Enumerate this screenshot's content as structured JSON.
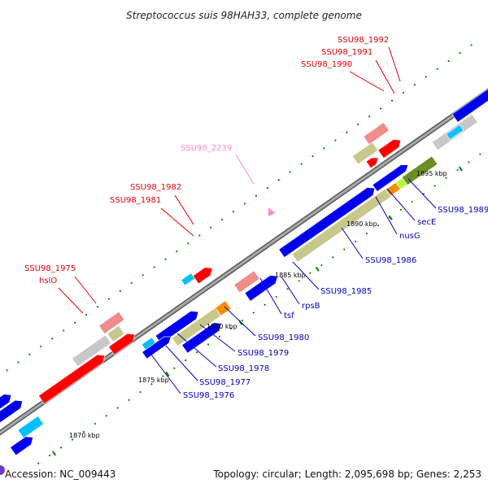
{
  "title": "Streptococcus suis 98HAH33, complete genome",
  "footer": {
    "accession": "Accession: NC_009443",
    "summary": "Topology: circular; Length: 2,095,698 bp; Genes: 2,253"
  },
  "colors": {
    "backbone": "#8c8c8c",
    "forward_gene": "#0000ee",
    "reverse_gene": "#ff0000",
    "trna": "#00c0ff",
    "pseudo": "#c8c8c8",
    "cds_khaki": "#c8c88c",
    "cds_salmon": "#f08c8c",
    "cds_olive": "#6b8e23",
    "cds_orange": "#ff8c00",
    "cds_lime": "#adff2f",
    "label_red": "#dd0000",
    "label_blue": "#0000bb",
    "label_pink": "#ff88cc",
    "tick": "#008000"
  },
  "ticks": [
    {
      "label": "1870 kbp"
    },
    {
      "label": "1875 kbp"
    },
    {
      "label": "1880 kbp"
    },
    {
      "label": "1885 kbp"
    },
    {
      "label": "1890 kbp"
    },
    {
      "label": "1895 kbp"
    }
  ],
  "labels": [
    {
      "text": "SSU98_1992",
      "color": "red"
    },
    {
      "text": "SSU98_1991",
      "color": "red"
    },
    {
      "text": "SSU98_1990",
      "color": "red"
    },
    {
      "text": "SSU98_2239",
      "color": "pink"
    },
    {
      "text": "SSU98_1982",
      "color": "red"
    },
    {
      "text": "SSU98_1981",
      "color": "red"
    },
    {
      "text": "SSU98_1975",
      "color": "red"
    },
    {
      "text": "hslO",
      "color": "red"
    },
    {
      "text": "SSU98_1989",
      "color": "blue"
    },
    {
      "text": "secE",
      "color": "blue"
    },
    {
      "text": "nusG",
      "color": "blue"
    },
    {
      "text": "SSU98_1986",
      "color": "blue"
    },
    {
      "text": "SSU98_1985",
      "color": "blue"
    },
    {
      "text": "rpsB",
      "color": "blue"
    },
    {
      "text": "tsf",
      "color": "blue"
    },
    {
      "text": "SSU98_1980",
      "color": "blue"
    },
    {
      "text": "SSU98_1979",
      "color": "blue"
    },
    {
      "text": "SSU98_1978",
      "color": "blue"
    },
    {
      "text": "SSU98_1977",
      "color": "blue"
    },
    {
      "text": "SSU98_1976",
      "color": "blue"
    }
  ]
}
